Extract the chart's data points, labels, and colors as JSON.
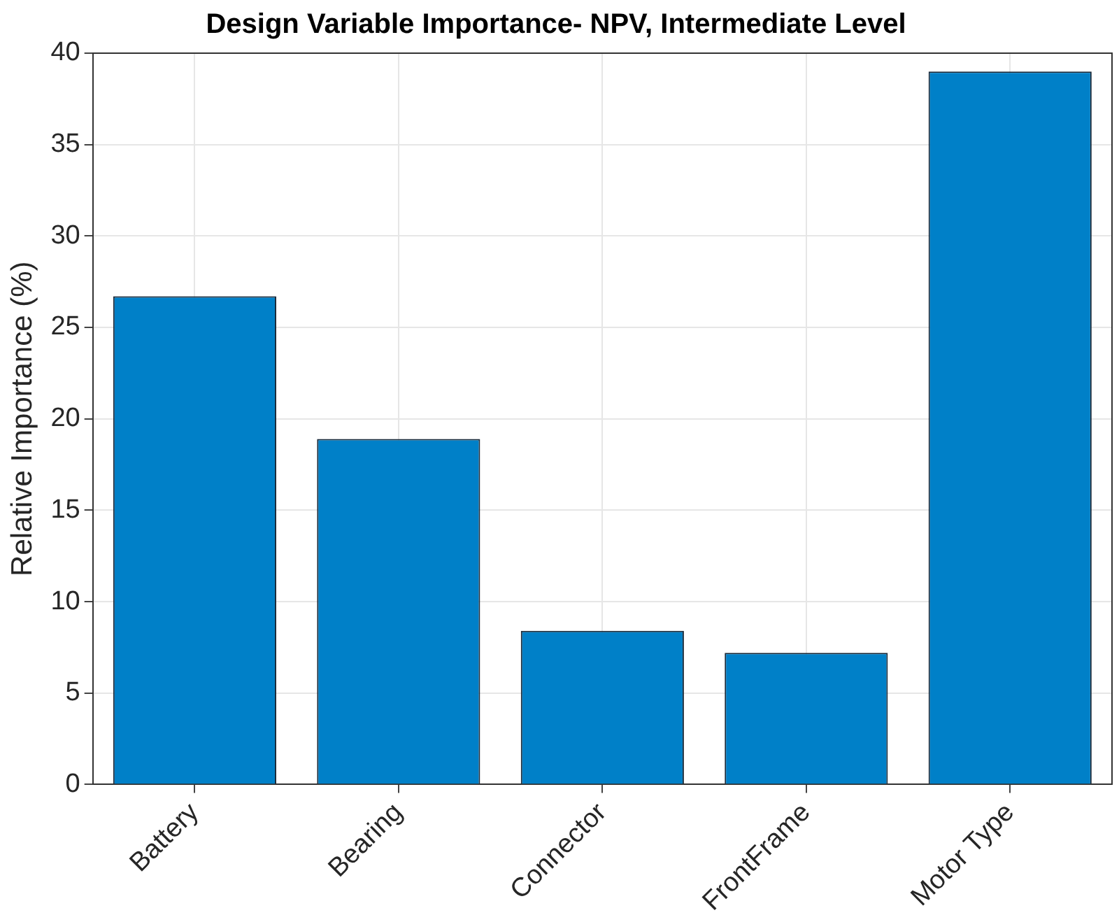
{
  "chart_data": {
    "type": "bar",
    "title": "Design Variable Importance- NPV, Intermediate Level",
    "ylabel": "Relative Importance (%)",
    "categories": [
      "Battery",
      "Bearing",
      "Connector",
      "FrontFrame",
      "Motor Type"
    ],
    "values": [
      26.7,
      18.9,
      8.4,
      7.2,
      39.0
    ],
    "color": "#0080c8",
    "ylim": [
      0,
      40
    ],
    "yticks": [
      0,
      5,
      10,
      15,
      20,
      25,
      30,
      35,
      40
    ],
    "grid": true,
    "legend": false
  }
}
